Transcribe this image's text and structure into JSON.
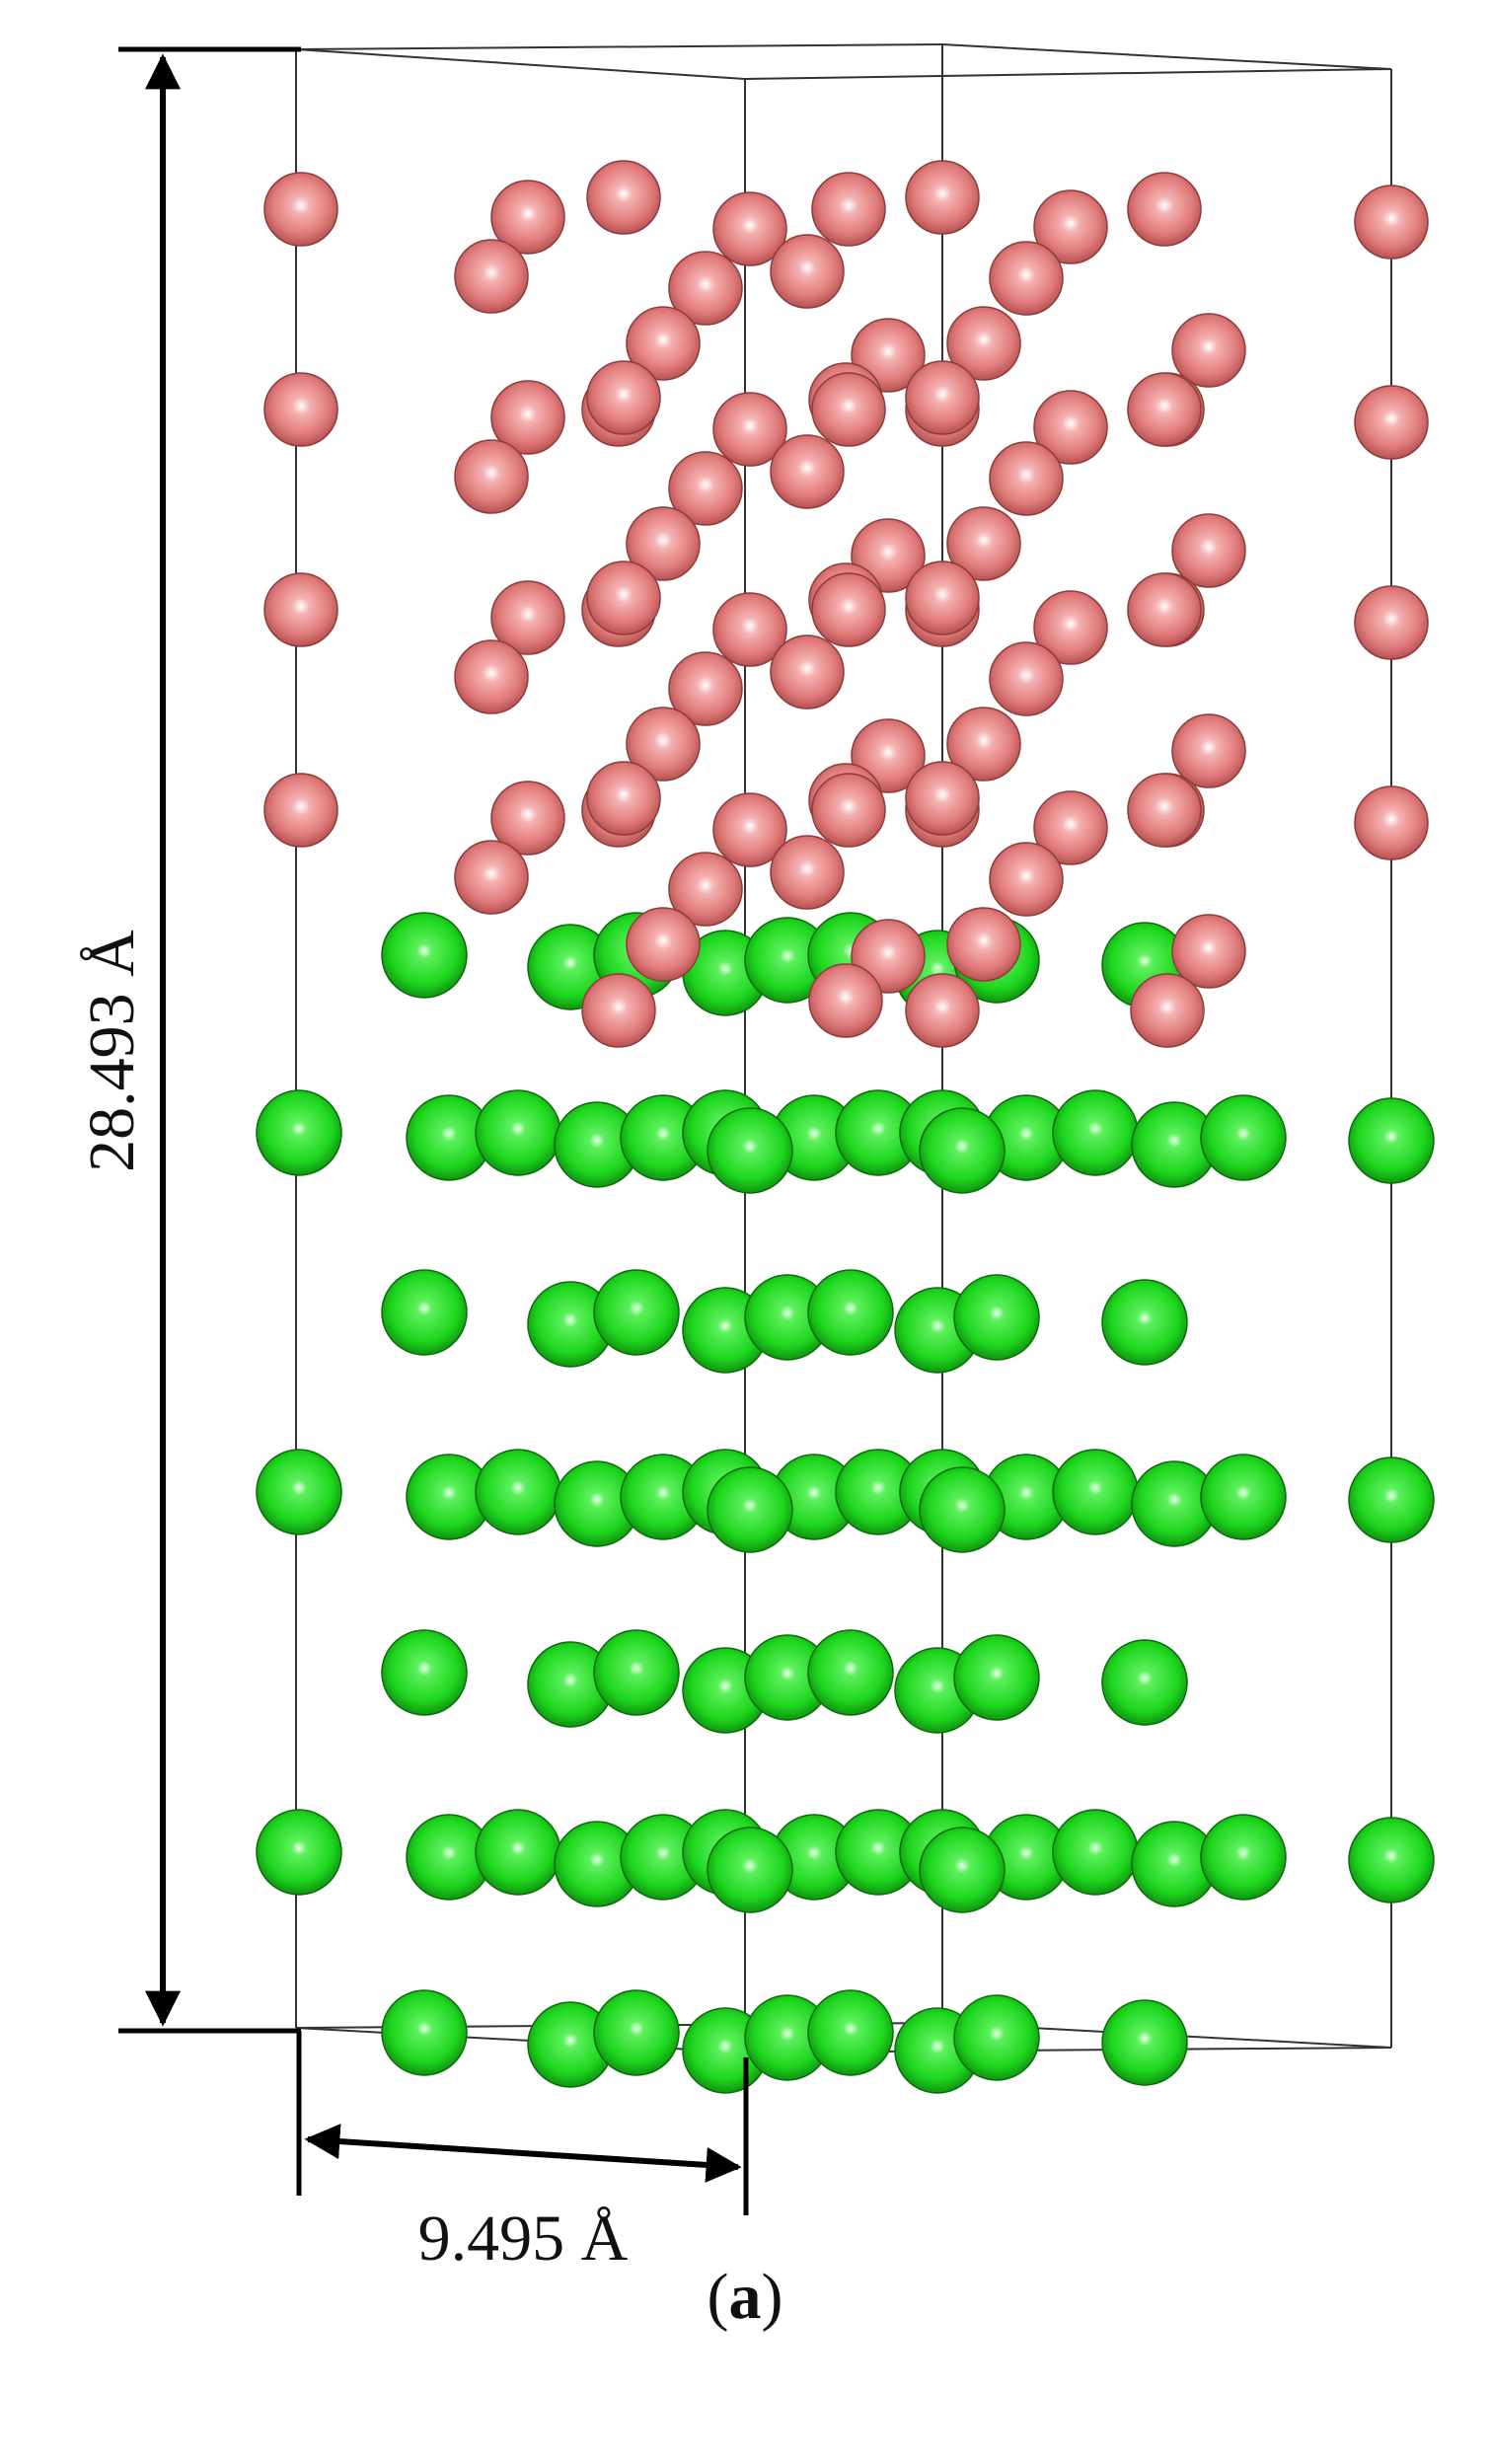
{
  "figure": {
    "panel_letter": "a",
    "height_label": "28.493 Å",
    "width_label": "9.495 Å",
    "colors": {
      "upper_atom": "#e07a7a",
      "lower_atom": "#1ed61e",
      "cell_edge": "#333333",
      "dimension_arrow": "#000000"
    },
    "species": [
      {
        "name": "upper-layer-atom",
        "color": "#e07a7a"
      },
      {
        "name": "lower-layer-atom",
        "color": "#1ed61e"
      }
    ]
  }
}
